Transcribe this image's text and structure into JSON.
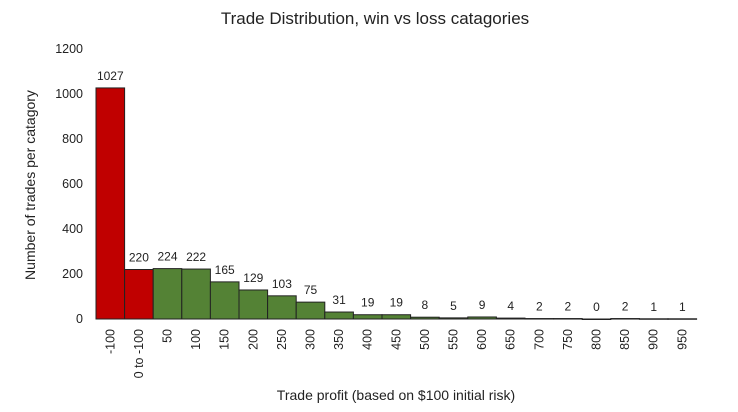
{
  "chart_data": {
    "type": "bar",
    "title": "Trade Distribution, win vs loss catagories",
    "xlabel": "Trade profit (based on $100 initial risk)",
    "ylabel": "Number of trades per catagory",
    "ylim": [
      0,
      1200
    ],
    "yticks": [
      0,
      200,
      400,
      600,
      800,
      1000,
      1200
    ],
    "grid": false,
    "categories": [
      "-100",
      "0 to -100",
      "50",
      "100",
      "150",
      "200",
      "250",
      "300",
      "350",
      "400",
      "450",
      "500",
      "550",
      "600",
      "650",
      "700",
      "750",
      "800",
      "850",
      "900",
      "950"
    ],
    "values": [
      1027,
      220,
      224,
      222,
      165,
      129,
      103,
      75,
      31,
      19,
      19,
      8,
      5,
      9,
      4,
      2,
      2,
      0,
      2,
      1,
      1
    ],
    "series": [
      {
        "name": "loss",
        "color": "#c00000",
        "categories": [
          "-100",
          "0 to -100"
        ]
      },
      {
        "name": "win",
        "color": "#548235",
        "categories": [
          "50",
          "100",
          "150",
          "200",
          "250",
          "300",
          "350",
          "400",
          "450",
          "500",
          "550",
          "600",
          "650",
          "700",
          "750",
          "800",
          "850",
          "900",
          "950"
        ]
      }
    ]
  }
}
